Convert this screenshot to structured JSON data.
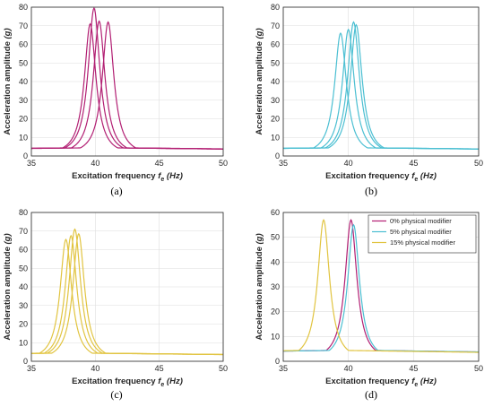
{
  "colors": {
    "A": "#b21f73",
    "B": "#4bbfd2",
    "C": "#e1c440"
  },
  "chart_data": [
    {
      "type": "line",
      "caption": "(a)",
      "xlabel": "Excitation frequency",
      "xlabel_sym": "f",
      "xlabel_sub": "e",
      "xlabel_unit": "(Hz)",
      "ylabel": "Acceleration amplitude",
      "ylabel_unit": "(g)",
      "xlim": [
        35,
        50
      ],
      "ylim": [
        0,
        80
      ],
      "xticks": [
        "35",
        "40",
        "45",
        "50"
      ],
      "yticks": [
        "0",
        "10",
        "20",
        "30",
        "40",
        "50",
        "60",
        "70",
        "80"
      ],
      "grid": true,
      "color": "A",
      "series": [
        {
          "peak_x": 39.9,
          "peak_y": 79.5
        },
        {
          "peak_x": 40.3,
          "peak_y": 72.5
        },
        {
          "peak_x": 41.0,
          "peak_y": 72.0
        },
        {
          "peak_x": 39.6,
          "peak_y": 71.0
        }
      ]
    },
    {
      "type": "line",
      "caption": "(b)",
      "xlabel": "Excitation frequency",
      "xlabel_sym": "f",
      "xlabel_sub": "e",
      "xlabel_unit": "(Hz)",
      "ylabel": "Acceleration amplitude",
      "ylabel_unit": "(g)",
      "xlim": [
        35,
        50
      ],
      "ylim": [
        0,
        80
      ],
      "xticks": [
        "35",
        "40",
        "45",
        "50"
      ],
      "yticks": [
        "0",
        "10",
        "20",
        "30",
        "40",
        "50",
        "60",
        "70",
        "80"
      ],
      "grid": true,
      "color": "B",
      "series": [
        {
          "peak_x": 39.4,
          "peak_y": 66.0
        },
        {
          "peak_x": 40.0,
          "peak_y": 68.0
        },
        {
          "peak_x": 40.4,
          "peak_y": 72.0
        },
        {
          "peak_x": 40.6,
          "peak_y": 70.5
        }
      ]
    },
    {
      "type": "line",
      "caption": "(c)",
      "xlabel": "Excitation frequency",
      "xlabel_sym": "f",
      "xlabel_sub": "e",
      "xlabel_unit": "(Hz)",
      "ylabel": "Acceleration amplitude",
      "ylabel_unit": "(g)",
      "xlim": [
        35,
        50
      ],
      "ylim": [
        0,
        80
      ],
      "xticks": [
        "35",
        "40",
        "45",
        "50"
      ],
      "yticks": [
        "0",
        "10",
        "20",
        "30",
        "40",
        "50",
        "60",
        "70",
        "80"
      ],
      "grid": true,
      "color": "C",
      "series": [
        {
          "peak_x": 37.7,
          "peak_y": 65.5
        },
        {
          "peak_x": 38.1,
          "peak_y": 67.5
        },
        {
          "peak_x": 38.4,
          "peak_y": 71.0
        },
        {
          "peak_x": 38.7,
          "peak_y": 68.5
        }
      ]
    },
    {
      "type": "line",
      "caption": "(d)",
      "xlabel": "Excitation frequency",
      "xlabel_sym": "f",
      "xlabel_sub": "e",
      "xlabel_unit": "(Hz)",
      "ylabel": "Acceleration amplitude",
      "ylabel_unit": "(g)",
      "xlim": [
        35,
        50
      ],
      "ylim": [
        0,
        60
      ],
      "xticks": [
        "35",
        "40",
        "45",
        "50"
      ],
      "yticks": [
        "0",
        "10",
        "20",
        "30",
        "40",
        "50",
        "60"
      ],
      "grid": true,
      "legend_position": "top-right",
      "series": [
        {
          "name": "0% physical modifier",
          "color": "A",
          "peak_x": 40.2,
          "peak_y": 57.0
        },
        {
          "name": "5% physical modifier",
          "color": "B",
          "peak_x": 40.4,
          "peak_y": 55.0
        },
        {
          "name": "15% physical modifier",
          "color": "C",
          "peak_x": 38.1,
          "peak_y": 57.0
        }
      ]
    }
  ]
}
